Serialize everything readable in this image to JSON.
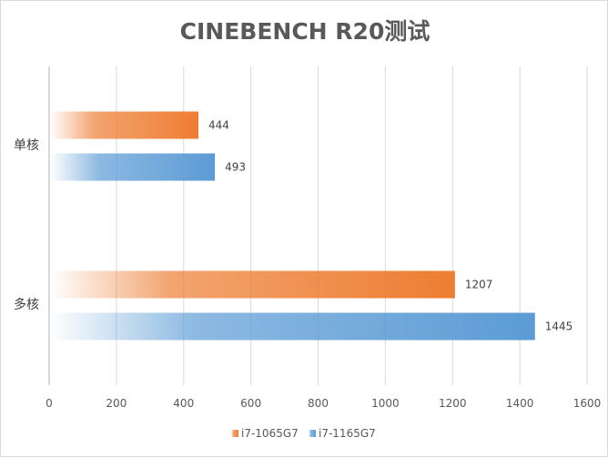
{
  "chart_data": {
    "type": "bar",
    "orientation": "horizontal",
    "title": "CINEBENCH R20测试",
    "xlabel": "",
    "ylabel": "",
    "categories": [
      "单核",
      "多核"
    ],
    "series": [
      {
        "name": "i7-1065G7",
        "values": [
          444,
          1207
        ],
        "color": "#ed7d31"
      },
      {
        "name": "i7-1165G7",
        "values": [
          493,
          1445
        ],
        "color": "#5b9bd5"
      }
    ],
    "xlim": [
      0,
      1600
    ],
    "xticks": [
      0,
      200,
      400,
      600,
      800,
      1000,
      1200,
      1400,
      1600
    ],
    "grid": true,
    "legend": "bottom",
    "data_labels": true
  }
}
